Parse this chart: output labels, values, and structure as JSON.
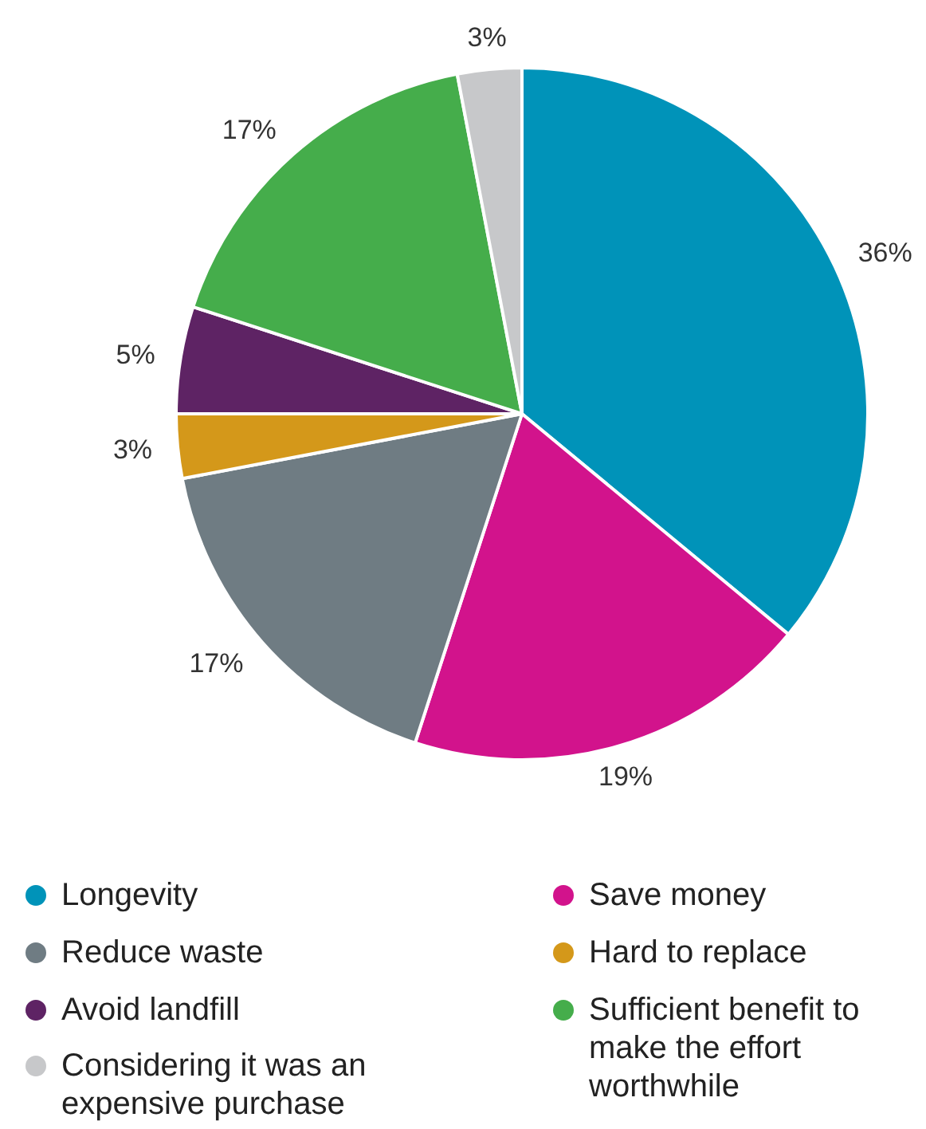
{
  "chart_data": {
    "type": "pie",
    "categories": [
      "Longevity",
      "Save money",
      "Reduce waste",
      "Hard to replace",
      "Avoid landfill",
      "Sufficient benefit to make the effort worthwhile",
      "Considering it was an expensive purchase"
    ],
    "values": [
      36,
      19,
      17,
      3,
      5,
      17,
      3
    ],
    "colors": [
      "#0093b9",
      "#d2138c",
      "#6f7c83",
      "#d4981a",
      "#5e2364",
      "#45ad4b",
      "#c7c8ca"
    ],
    "value_labels": [
      "36%",
      "19%",
      "17%",
      "3%",
      "5%",
      "17%",
      "3%"
    ],
    "legend": "bottom"
  }
}
